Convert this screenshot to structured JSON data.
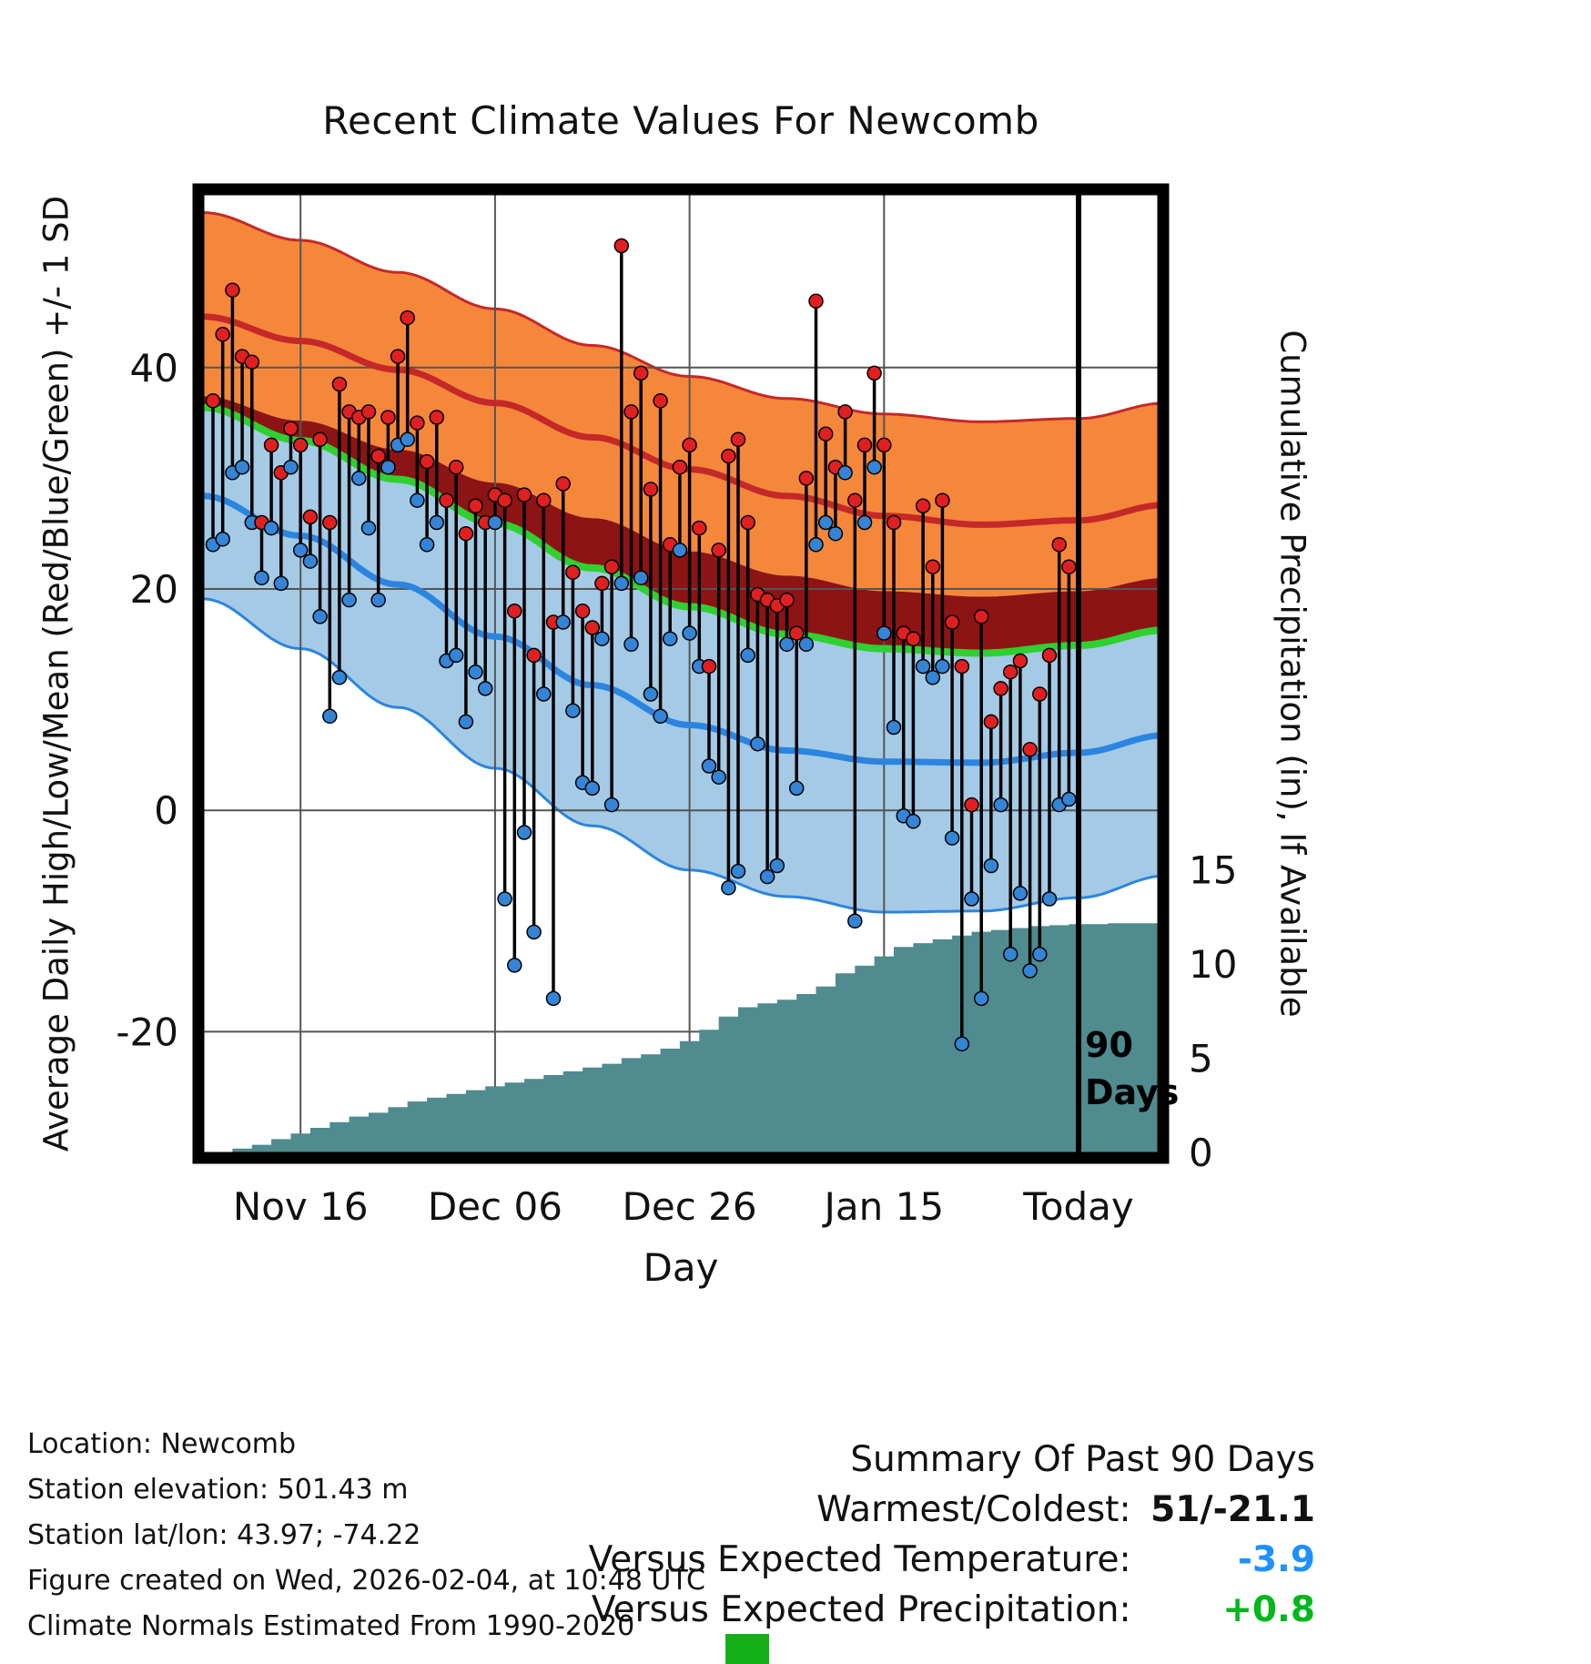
{
  "annotation_90_days": {
    "line1": "90",
    "line2": "Days"
  },
  "footer_left": {
    "location": "Location: Newcomb",
    "elevation": "Station elevation: 501.43 m",
    "latlon": "Station lat/lon: 43.97; -74.22",
    "created": "Figure created on Wed, 2026-02-04, at 10:48 UTC",
    "normals": "Climate Normals Estimated From 1990-2020"
  },
  "summary": {
    "heading": "Summary Of Past 90 Days",
    "rows": [
      {
        "label": "Warmest/Coldest:",
        "value": "51/-21.1",
        "color": "#111111"
      },
      {
        "label": "Versus Expected Temperature:",
        "value": "-3.9",
        "color": "#1e90ff"
      },
      {
        "label": "Versus Expected Precipitation:",
        "value": "+0.8",
        "color": "#00b81c"
      }
    ]
  },
  "green_marker": {
    "color": "#15b01a"
  },
  "chart_data": {
    "type": "composite",
    "title": "Recent Climate Values For Newcomb",
    "x_axis": {
      "label": "Day",
      "range_days": [
        -0.5,
        98.7
      ],
      "ticks": [
        {
          "day": 10,
          "label": "Nov 16"
        },
        {
          "day": 30,
          "label": "Dec 06"
        },
        {
          "day": 50,
          "label": "Dec 26"
        },
        {
          "day": 70,
          "label": "Jan 15"
        },
        {
          "day": 90,
          "label": "Today"
        }
      ],
      "today_day": 90
    },
    "y_left": {
      "label": "Average Daily High/Low/Mean (Red/Blue/Green) +/- 1 SD",
      "range": [
        -31.4,
        56.1
      ],
      "ticks": [
        -20,
        0,
        20,
        40
      ]
    },
    "y_right": {
      "label": "Cumulative Precipitation (in), If Available",
      "ticks": [
        0,
        5,
        10,
        15
      ],
      "zero_left_value": -30.9,
      "left_units_per_inch": 1.703
    },
    "normals": {
      "days": [
        0,
        10,
        20,
        30,
        40,
        50,
        60,
        70,
        80,
        90,
        99
      ],
      "high_plus_sd": [
        54.0,
        51.5,
        48.6,
        45.3,
        42.0,
        39.2,
        37.2,
        35.8,
        35.1,
        35.4,
        36.8
      ],
      "high_mean": [
        44.6,
        42.4,
        39.8,
        36.8,
        33.7,
        30.8,
        28.4,
        26.6,
        25.8,
        26.2,
        27.6
      ],
      "high_minus_sd": [
        37.4,
        35.2,
        32.6,
        29.6,
        26.4,
        23.4,
        21.2,
        19.8,
        19.3,
        19.8,
        21.0
      ],
      "mean": [
        36.4,
        33.4,
        29.9,
        25.9,
        21.9,
        18.4,
        15.9,
        14.6,
        14.2,
        14.9,
        16.3
      ],
      "low_plus_sd": [
        37.4,
        34.8,
        31.2,
        27.4,
        23.8,
        20.6,
        18.5,
        17.9,
        17.6,
        18.2,
        19.4
      ],
      "low_mean": [
        28.4,
        24.8,
        20.4,
        15.7,
        11.3,
        7.7,
        5.4,
        4.4,
        4.3,
        5.2,
        6.8
      ],
      "low_minus_sd": [
        19.1,
        14.6,
        9.3,
        3.8,
        -1.4,
        -5.4,
        -7.8,
        -9.2,
        -9.1,
        -7.9,
        -5.9
      ]
    },
    "daily_obs": [
      [
        1,
        37,
        24
      ],
      [
        2,
        43,
        24.5
      ],
      [
        3,
        47,
        30.5
      ],
      [
        4,
        41,
        31
      ],
      [
        5,
        40.5,
        26
      ],
      [
        6,
        26,
        21
      ],
      [
        7,
        33,
        25.5
      ],
      [
        8,
        30.5,
        20.5
      ],
      [
        9,
        34.5,
        31
      ],
      [
        10,
        33,
        23.5
      ],
      [
        11,
        26.5,
        22.5
      ],
      [
        12,
        33.5,
        17.5
      ],
      [
        13,
        26,
        8.5
      ],
      [
        14,
        38.5,
        12
      ],
      [
        15,
        36,
        19
      ],
      [
        16,
        35.5,
        30
      ],
      [
        17,
        36,
        25.5
      ],
      [
        18,
        32,
        19
      ],
      [
        19,
        35.5,
        31
      ],
      [
        20,
        41,
        33
      ],
      [
        21,
        44.5,
        33.5
      ],
      [
        22,
        35,
        28
      ],
      [
        23,
        31.5,
        24
      ],
      [
        24,
        35.5,
        26
      ],
      [
        25,
        28,
        13.5
      ],
      [
        26,
        31,
        14
      ],
      [
        27,
        25,
        8
      ],
      [
        28,
        27.5,
        12.5
      ],
      [
        29,
        26,
        11
      ],
      [
        30,
        28.5,
        26
      ],
      [
        31,
        28,
        -8
      ],
      [
        32,
        18,
        -14
      ],
      [
        33,
        28.5,
        -2
      ],
      [
        34,
        14,
        -11
      ],
      [
        35,
        28,
        10.5
      ],
      [
        36,
        17,
        -17
      ],
      [
        37,
        29.5,
        17
      ],
      [
        38,
        21.5,
        9
      ],
      [
        39,
        18,
        2.5
      ],
      [
        40,
        16.5,
        2
      ],
      [
        41,
        20.5,
        15.5
      ],
      [
        42,
        22,
        0.5
      ],
      [
        43,
        51,
        20.5
      ],
      [
        44,
        36,
        15
      ],
      [
        45,
        39.5,
        21
      ],
      [
        46,
        29,
        10.5
      ],
      [
        47,
        37,
        8.5
      ],
      [
        48,
        24,
        15.5
      ],
      [
        49,
        31,
        23.5
      ],
      [
        50,
        33,
        16
      ],
      [
        51,
        25.5,
        13
      ],
      [
        52,
        13,
        4
      ],
      [
        53,
        23.5,
        3
      ],
      [
        54,
        32,
        -7
      ],
      [
        55,
        33.5,
        -5.5
      ],
      [
        56,
        26,
        14
      ],
      [
        57,
        19.5,
        6
      ],
      [
        58,
        19,
        -6
      ],
      [
        59,
        18.5,
        -5
      ],
      [
        60,
        19,
        15
      ],
      [
        61,
        16,
        2
      ],
      [
        62,
        30,
        15
      ],
      [
        63,
        46,
        24
      ],
      [
        64,
        34,
        26
      ],
      [
        65,
        31,
        25
      ],
      [
        66,
        36,
        30.5
      ],
      [
        67,
        28,
        -10
      ],
      [
        68,
        33,
        26
      ],
      [
        69,
        39.5,
        31
      ],
      [
        70,
        33,
        16
      ],
      [
        71,
        26,
        7.5
      ],
      [
        72,
        16,
        -0.5
      ],
      [
        73,
        15.5,
        -1
      ],
      [
        74,
        27.5,
        13
      ],
      [
        75,
        22,
        12
      ],
      [
        76,
        28,
        13
      ],
      [
        77,
        17,
        -2.5
      ],
      [
        78,
        13,
        -21.1
      ],
      [
        79,
        0.5,
        -8
      ],
      [
        80,
        17.5,
        -17
      ],
      [
        81,
        8,
        -5
      ],
      [
        82,
        11,
        0.5
      ],
      [
        83,
        12.5,
        -13
      ],
      [
        84,
        13.5,
        -7.5
      ],
      [
        85,
        5.5,
        -14.5
      ],
      [
        86,
        10.5,
        -13
      ],
      [
        87,
        14,
        -8
      ],
      [
        88,
        24,
        0.5
      ],
      [
        89,
        22,
        1
      ]
    ],
    "cumulative_precip": [
      [
        1,
        0
      ],
      [
        3,
        0.2
      ],
      [
        5,
        0.4
      ],
      [
        7,
        0.7
      ],
      [
        9,
        1.0
      ],
      [
        11,
        1.3
      ],
      [
        13,
        1.6
      ],
      [
        15,
        1.9
      ],
      [
        17,
        2.1
      ],
      [
        19,
        2.4
      ],
      [
        21,
        2.7
      ],
      [
        23,
        2.9
      ],
      [
        25,
        3.1
      ],
      [
        27,
        3.3
      ],
      [
        29,
        3.5
      ],
      [
        31,
        3.7
      ],
      [
        33,
        3.9
      ],
      [
        35,
        4.1
      ],
      [
        37,
        4.3
      ],
      [
        39,
        4.5
      ],
      [
        41,
        4.7
      ],
      [
        43,
        5.0
      ],
      [
        45,
        5.2
      ],
      [
        47,
        5.5
      ],
      [
        49,
        5.9
      ],
      [
        51,
        6.5
      ],
      [
        53,
        7.2
      ],
      [
        55,
        7.7
      ],
      [
        57,
        7.9
      ],
      [
        59,
        8.1
      ],
      [
        61,
        8.4
      ],
      [
        63,
        8.8
      ],
      [
        65,
        9.5
      ],
      [
        67,
        9.9
      ],
      [
        69,
        10.4
      ],
      [
        71,
        10.9
      ],
      [
        73,
        11.1
      ],
      [
        75,
        11.3
      ],
      [
        77,
        11.5
      ],
      [
        79,
        11.7
      ],
      [
        81,
        11.8
      ],
      [
        83,
        11.9
      ],
      [
        85,
        12.0
      ],
      [
        87,
        12.05
      ],
      [
        89,
        12.1
      ],
      [
        93,
        12.15
      ],
      [
        98.7,
        12.2
      ]
    ],
    "colors": {
      "orange_band": "#f5873b",
      "high_line": "#c52828",
      "maroon_band": "#8c1414",
      "mean_line": "#2fd02f",
      "blue_band": "#a5cae5",
      "low_line": "#2b85e0",
      "band_edge_red": "#c52828",
      "band_edge_blue": "#2b85e0",
      "obs_line": "#000000",
      "obs_high_dot": "#e02020",
      "obs_low_dot": "#3584d6",
      "precip_area": "#4f8b8f",
      "grid": "#555555",
      "today_line": "#000000"
    }
  }
}
